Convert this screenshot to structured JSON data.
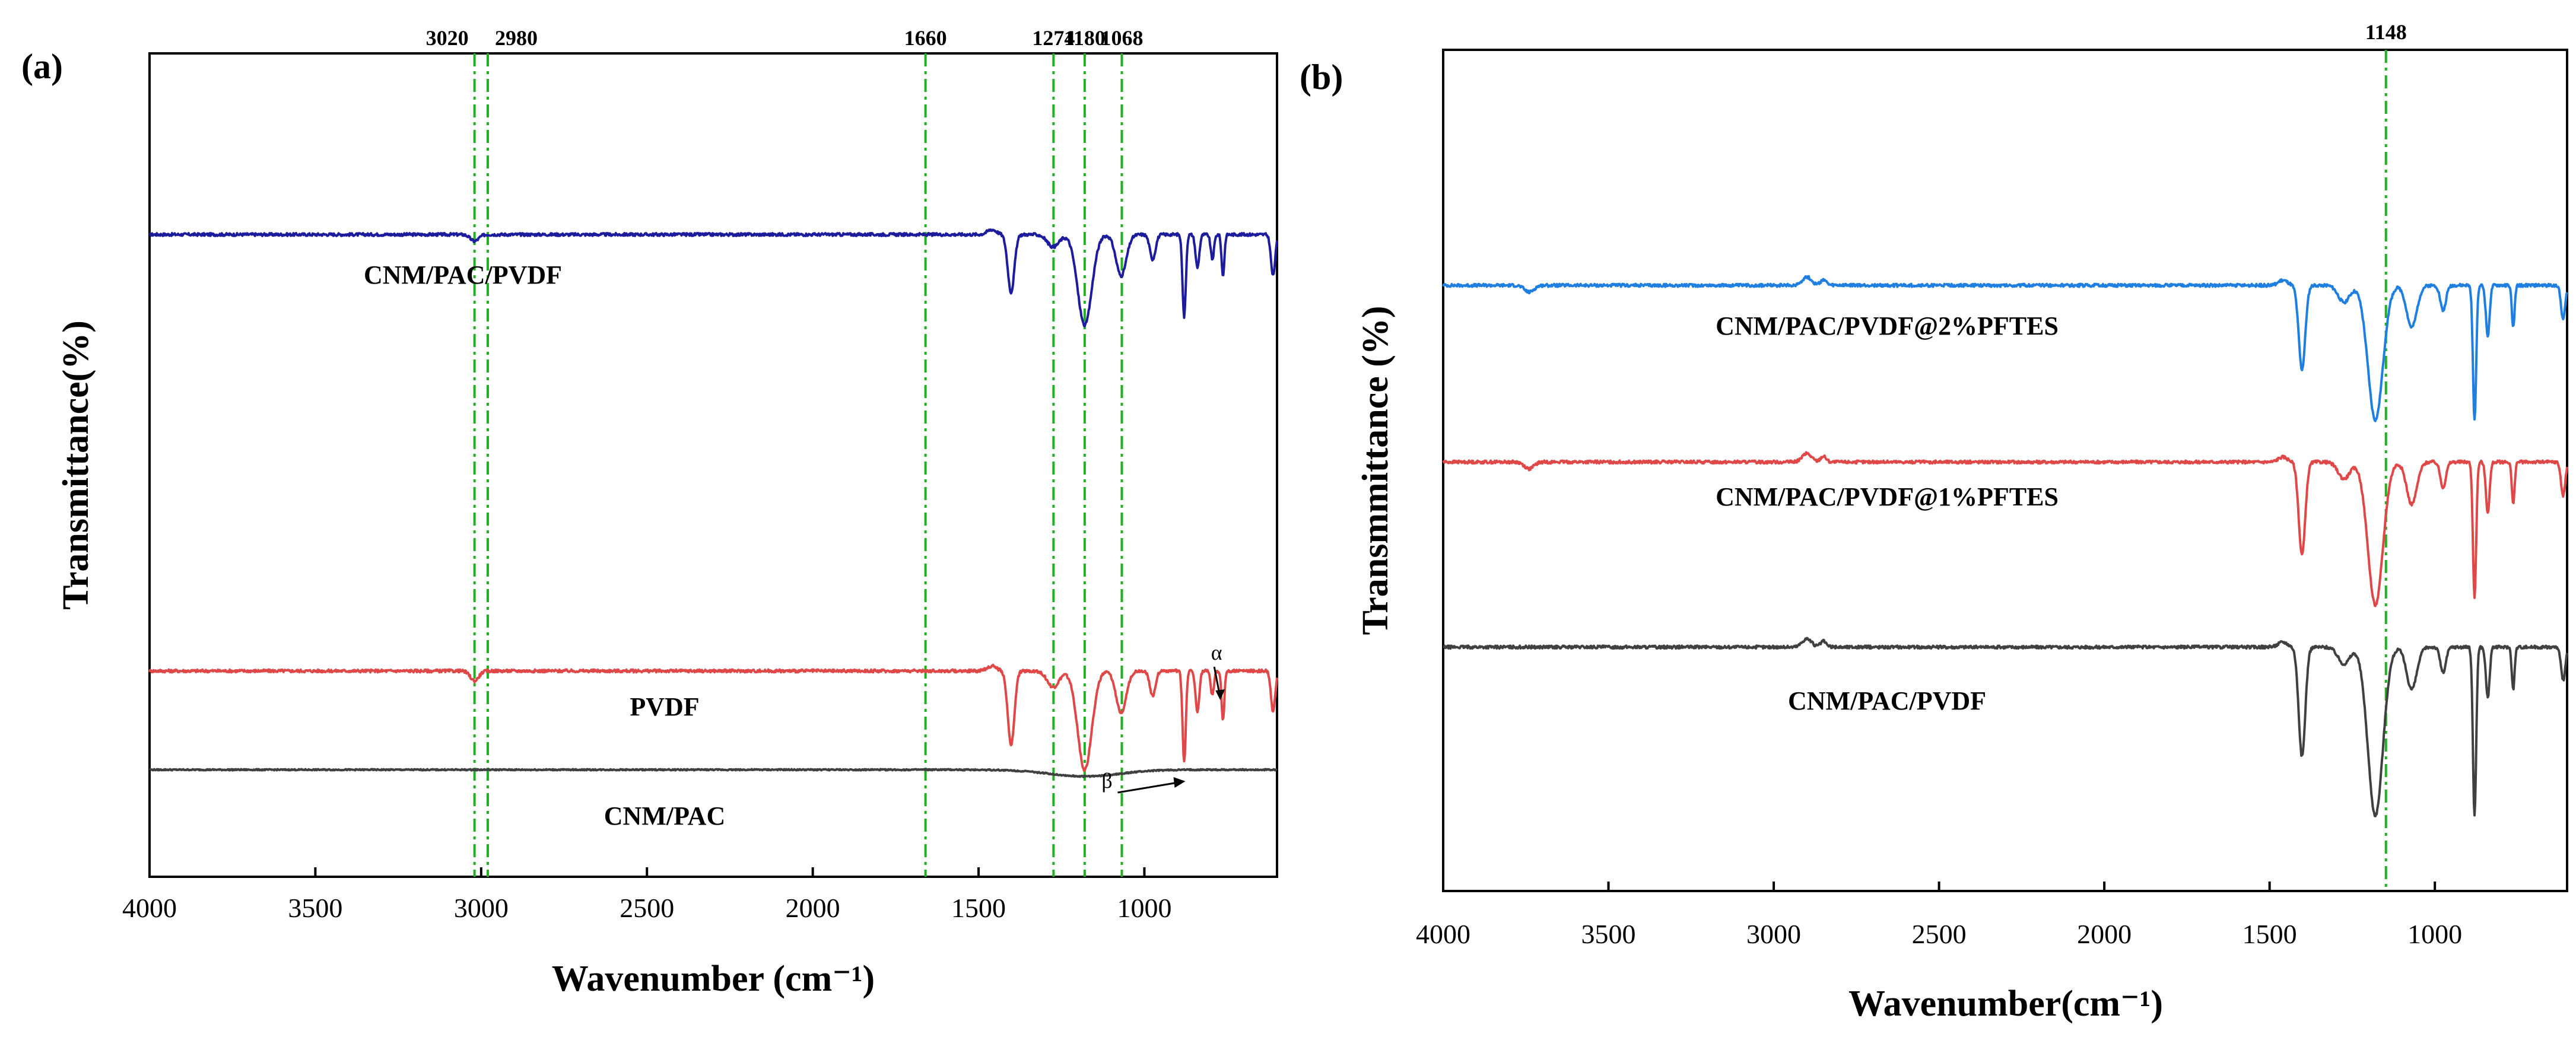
{
  "chart_data": [
    {
      "panel": "(a)",
      "type": "line",
      "xlabel": "Wavenumber (cm⁻¹)",
      "ylabel": "Transmittance(%)",
      "xlim": [
        4000,
        600
      ],
      "xticks": [
        4000,
        3500,
        3000,
        2500,
        2000,
        1500,
        1000
      ],
      "reference_lines": [
        {
          "x": 3020,
          "label": "3020"
        },
        {
          "x": 2980,
          "label": "2980"
        },
        {
          "x": 1660,
          "label": "1660"
        },
        {
          "x": 1274,
          "label": "1274"
        },
        {
          "x": 1180,
          "label": "1180"
        },
        {
          "x": 1068,
          "label": "1068"
        }
      ],
      "annotations": [
        {
          "text": "α",
          "x": 800
        },
        {
          "text": "β",
          "x": 880
        }
      ],
      "series": [
        {
          "name": "CNM/PAC/PVDF",
          "color": "#1c1c9c",
          "baseline": 78,
          "noise": 0.35,
          "peaks": [
            {
              "x": 3020,
              "depth": 0.8,
              "width": 18
            },
            {
              "x": 1460,
              "depth": -0.6,
              "width": 20
            },
            {
              "x": 1402,
              "depth": 7,
              "width": 14
            },
            {
              "x": 1275,
              "depth": 1.5,
              "width": 25
            },
            {
              "x": 1180,
              "depth": 11,
              "width": 30
            },
            {
              "x": 1070,
              "depth": 5,
              "width": 22
            },
            {
              "x": 975,
              "depth": 3,
              "width": 12
            },
            {
              "x": 880,
              "depth": 10,
              "width": 7
            },
            {
              "x": 840,
              "depth": 4,
              "width": 8
            },
            {
              "x": 795,
              "depth": 3,
              "width": 7
            },
            {
              "x": 763,
              "depth": 5,
              "width": 6
            },
            {
              "x": 612,
              "depth": 5,
              "width": 9
            }
          ]
        },
        {
          "name": "PVDF",
          "color": "#e04848",
          "baseline": 25,
          "noise": 0.35,
          "peaks": [
            {
              "x": 3020,
              "depth": 1.2,
              "width": 18
            },
            {
              "x": 1460,
              "depth": -0.6,
              "width": 20
            },
            {
              "x": 1402,
              "depth": 9,
              "width": 14
            },
            {
              "x": 1275,
              "depth": 2,
              "width": 25
            },
            {
              "x": 1180,
              "depth": 12,
              "width": 30
            },
            {
              "x": 1070,
              "depth": 5,
              "width": 22
            },
            {
              "x": 975,
              "depth": 3,
              "width": 12
            },
            {
              "x": 880,
              "depth": 11,
              "width": 7
            },
            {
              "x": 840,
              "depth": 5,
              "width": 8
            },
            {
              "x": 795,
              "depth": 3,
              "width": 7
            },
            {
              "x": 763,
              "depth": 6,
              "width": 6
            },
            {
              "x": 612,
              "depth": 5,
              "width": 9
            }
          ]
        },
        {
          "name": "CNM/PAC",
          "color": "#404040",
          "baseline": 13,
          "noise": 0.15,
          "peaks": [
            {
              "x": 1180,
              "depth": 0.8,
              "width": 150
            }
          ]
        }
      ],
      "ylim": [
        0,
        100
      ]
    },
    {
      "panel": "(b)",
      "type": "line",
      "xlabel": "Wavenumber(cm⁻¹)",
      "ylabel": "Transmmittance (%)",
      "xlim": [
        4000,
        600
      ],
      "xticks": [
        4000,
        3500,
        3000,
        2500,
        2000,
        1500,
        1000
      ],
      "reference_lines": [
        {
          "x": 1148,
          "label": "1148"
        }
      ],
      "annotations": [],
      "series": [
        {
          "name": "CNM/PAC/PVDF@2%PFTES",
          "color": "#1f7fe0",
          "baseline": 72,
          "noise": 0.35,
          "peaks": [
            {
              "x": 3740,
              "depth": 0.8,
              "width": 20
            },
            {
              "x": 2900,
              "depth": -1,
              "width": 20
            },
            {
              "x": 2850,
              "depth": -0.7,
              "width": 12
            },
            {
              "x": 1460,
              "depth": -0.6,
              "width": 20
            },
            {
              "x": 1402,
              "depth": 10,
              "width": 14
            },
            {
              "x": 1275,
              "depth": 2,
              "width": 25
            },
            {
              "x": 1180,
              "depth": 16,
              "width": 32
            },
            {
              "x": 1070,
              "depth": 5,
              "width": 22
            },
            {
              "x": 975,
              "depth": 3,
              "width": 12
            },
            {
              "x": 880,
              "depth": 16,
              "width": 7
            },
            {
              "x": 840,
              "depth": 6,
              "width": 8
            },
            {
              "x": 763,
              "depth": 5,
              "width": 6
            },
            {
              "x": 612,
              "depth": 4,
              "width": 9
            }
          ]
        },
        {
          "name": "CNM/PAC/PVDF@1%PFTES",
          "color": "#e04848",
          "baseline": 51,
          "noise": 0.35,
          "peaks": [
            {
              "x": 3740,
              "depth": 0.8,
              "width": 20
            },
            {
              "x": 2900,
              "depth": -1,
              "width": 20
            },
            {
              "x": 2850,
              "depth": -0.7,
              "width": 12
            },
            {
              "x": 1460,
              "depth": -0.6,
              "width": 20
            },
            {
              "x": 1402,
              "depth": 11,
              "width": 14
            },
            {
              "x": 1275,
              "depth": 2,
              "width": 25
            },
            {
              "x": 1180,
              "depth": 17,
              "width": 32
            },
            {
              "x": 1070,
              "depth": 5,
              "width": 22
            },
            {
              "x": 975,
              "depth": 3,
              "width": 12
            },
            {
              "x": 880,
              "depth": 16,
              "width": 7
            },
            {
              "x": 840,
              "depth": 6,
              "width": 8
            },
            {
              "x": 763,
              "depth": 5,
              "width": 6
            },
            {
              "x": 612,
              "depth": 4,
              "width": 9
            }
          ]
        },
        {
          "name": "CNM/PAC/PVDF",
          "color": "#404040",
          "baseline": 29,
          "noise": 0.35,
          "peaks": [
            {
              "x": 2900,
              "depth": -1,
              "width": 20
            },
            {
              "x": 2850,
              "depth": -0.7,
              "width": 12
            },
            {
              "x": 1460,
              "depth": -0.6,
              "width": 20
            },
            {
              "x": 1402,
              "depth": 13,
              "width": 14
            },
            {
              "x": 1275,
              "depth": 2,
              "width": 25
            },
            {
              "x": 1180,
              "depth": 20,
              "width": 32
            },
            {
              "x": 1070,
              "depth": 5,
              "width": 22
            },
            {
              "x": 975,
              "depth": 3,
              "width": 12
            },
            {
              "x": 880,
              "depth": 20,
              "width": 7
            },
            {
              "x": 840,
              "depth": 6,
              "width": 8
            },
            {
              "x": 763,
              "depth": 5,
              "width": 6
            },
            {
              "x": 612,
              "depth": 4,
              "width": 9
            }
          ]
        }
      ],
      "ylim": [
        0,
        100
      ]
    }
  ]
}
